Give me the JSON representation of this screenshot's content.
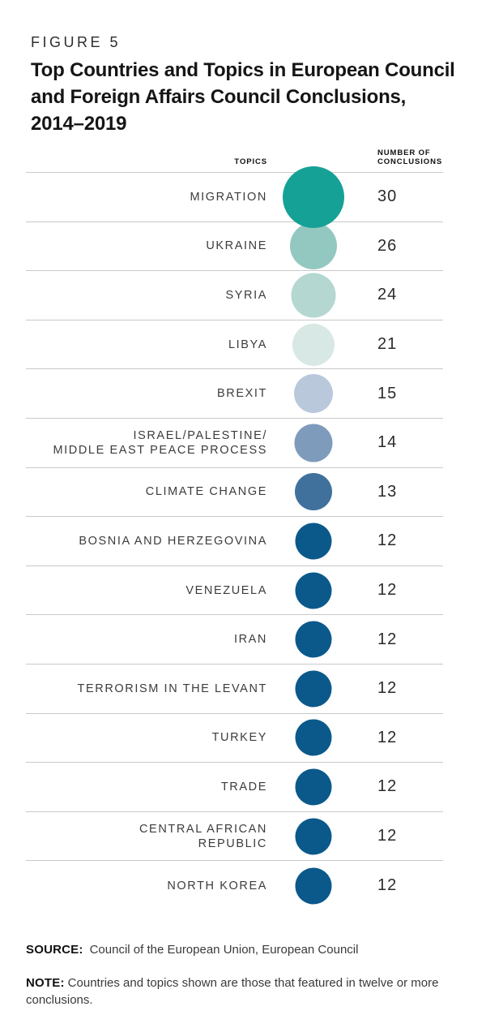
{
  "figure": {
    "label": "FIGURE 5",
    "title": "Top Countries and Topics in European Council and Foreign Affairs Council Conclusions, 2014–2019",
    "title_lines": [
      "Top Countries and Topics in European Council",
      "and Foreign Affairs Council Conclusions,",
      "2014–2019"
    ]
  },
  "table": {
    "header": {
      "topics": "TOPICS",
      "number": "NUMBER OF\nCONCLUSIONS"
    }
  },
  "rows": [
    {
      "topic": "MIGRATION",
      "value": "30",
      "color": "#15A195",
      "size": 76
    },
    {
      "topic": "UKRAINE",
      "value": "26",
      "color": "#93C8C0",
      "size": 58
    },
    {
      "topic": "SYRIA",
      "value": "24",
      "color": "#B4D7D1",
      "size": 55
    },
    {
      "topic": "LIBYA",
      "value": "21",
      "color": "#D8E8E4",
      "size": 52
    },
    {
      "topic": "BREXIT",
      "value": "15",
      "color": "#BAC8DC",
      "size": 48
    },
    {
      "topic": "ISRAEL/PALESTINE/\nMIDDLE EAST PEACE PROCESS",
      "value": "14",
      "color": "#7E9BBC",
      "size": 47
    },
    {
      "topic": "CLIMATE CHANGE",
      "value": "13",
      "color": "#40719D",
      "size": 46
    },
    {
      "topic": "BOSNIA AND HERZEGOVINA",
      "value": "12",
      "color": "#0B598B",
      "size": 45
    },
    {
      "topic": "VENEZUELA",
      "value": "12",
      "color": "#0B598B",
      "size": 45
    },
    {
      "topic": "IRAN",
      "value": "12",
      "color": "#0B598B",
      "size": 45
    },
    {
      "topic": "TERRORISM IN THE LEVANT",
      "value": "12",
      "color": "#0B598B",
      "size": 45
    },
    {
      "topic": "TURKEY",
      "value": "12",
      "color": "#0B598B",
      "size": 45
    },
    {
      "topic": "TRADE",
      "value": "12",
      "color": "#0B598B",
      "size": 45
    },
    {
      "topic": "CENTRAL AFRICAN\nREPUBLIC",
      "value": "12",
      "color": "#0B598B",
      "size": 45
    },
    {
      "topic": "NORTH KOREA",
      "value": "12",
      "color": "#0B598B",
      "size": 45
    }
  ],
  "chart_data": {
    "type": "table",
    "variant": "proportional-bubble-table",
    "figure_label": "FIGURE 5",
    "title": "Top Countries and Topics in European Council and Foreign Affairs Council Conclusions, 2014–2019",
    "columns": [
      "TOPICS",
      "NUMBER OF CONCLUSIONS"
    ],
    "categories": [
      "MIGRATION",
      "UKRAINE",
      "SYRIA",
      "LIBYA",
      "BREXIT",
      "ISRAEL/PALESTINE/MIDDLE EAST PEACE PROCESS",
      "CLIMATE CHANGE",
      "BOSNIA AND HERZEGOVINA",
      "VENEZUELA",
      "IRAN",
      "TERRORISM IN THE LEVANT",
      "TURKEY",
      "TRADE",
      "CENTRAL AFRICAN REPUBLIC",
      "NORTH KOREA"
    ],
    "values": [
      30,
      26,
      24,
      21,
      15,
      14,
      13,
      12,
      12,
      12,
      12,
      12,
      12,
      12,
      12
    ],
    "bubble_colors": [
      "#15A195",
      "#93C8C0",
      "#B4D7D1",
      "#D8E8E4",
      "#BAC8DC",
      "#7E9BBC",
      "#40719D",
      "#0B598B",
      "#0B598B",
      "#0B598B",
      "#0B598B",
      "#0B598B",
      "#0B598B",
      "#0B598B",
      "#0B598B"
    ],
    "legend_position": "none",
    "grid": "horizontal row dividers",
    "source": "Council of the European Union, European Council",
    "note": "Countries and topics shown are those that featured in twelve or more conclusions."
  },
  "palette": {
    "teal_max": "#15A195",
    "navy_min": "#0B598B",
    "divider": "#C9C9C9",
    "text_dark": "#151515"
  },
  "source": {
    "label": "SOURCE:",
    "text": "Council of the European Union, European Council"
  },
  "note": {
    "label": "NOTE:",
    "text": "Countries and topics shown are those that featured in twelve or more conclusions."
  }
}
